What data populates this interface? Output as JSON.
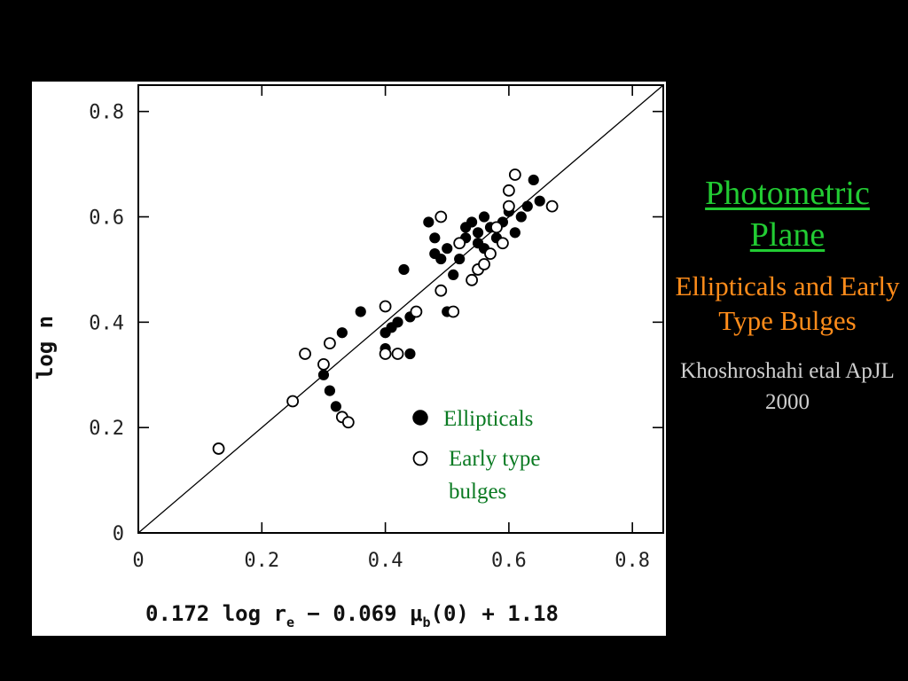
{
  "slide": {
    "title": "Photometric Plane",
    "subtitle": "Ellipticals and Early Type Bulges",
    "credit": "Khoshroshahi etal ApJL 2000",
    "colors": {
      "background": "#000000",
      "title": "#22cc33",
      "subtitle": "#ff8c1a",
      "credit": "#cfcfcf",
      "legend_text": "#0a7a22"
    }
  },
  "chart_data": {
    "type": "scatter",
    "title": "",
    "ylabel": "log n",
    "xlabel_parts": {
      "a": "0.172 log r",
      "a_sub": "e",
      "b": " − 0.069 ",
      "mu": "μ",
      "mu_sub": "b",
      "c": "(0) + 1.18"
    },
    "xlim": [
      0,
      0.85
    ],
    "ylim": [
      0,
      0.85
    ],
    "x_ticks": [
      {
        "value": 0,
        "label": "0"
      },
      {
        "value": 0.2,
        "label": "0.2"
      },
      {
        "value": 0.4,
        "label": "0.4"
      },
      {
        "value": 0.6,
        "label": "0.6"
      },
      {
        "value": 0.8,
        "label": "0.8"
      }
    ],
    "y_ticks": [
      {
        "value": 0,
        "label": "0"
      },
      {
        "value": 0.2,
        "label": "0.2"
      },
      {
        "value": 0.4,
        "label": "0.4"
      },
      {
        "value": 0.6,
        "label": "0.6"
      },
      {
        "value": 0.8,
        "label": "0.8"
      }
    ],
    "fit_line": {
      "from": [
        0,
        0
      ],
      "to": [
        0.85,
        0.85
      ]
    },
    "legend": {
      "placement": "center-right",
      "entries": [
        {
          "marker": "filled-circle",
          "label": "Ellipticals"
        },
        {
          "marker": "open-circle",
          "label": "Early type bulges"
        }
      ]
    },
    "series": [
      {
        "name": "Ellipticals",
        "marker": "filled-circle",
        "points": [
          [
            0.3,
            0.3
          ],
          [
            0.31,
            0.27
          ],
          [
            0.32,
            0.24
          ],
          [
            0.33,
            0.22
          ],
          [
            0.33,
            0.38
          ],
          [
            0.36,
            0.42
          ],
          [
            0.4,
            0.35
          ],
          [
            0.4,
            0.38
          ],
          [
            0.41,
            0.39
          ],
          [
            0.42,
            0.4
          ],
          [
            0.43,
            0.5
          ],
          [
            0.44,
            0.34
          ],
          [
            0.44,
            0.41
          ],
          [
            0.47,
            0.59
          ],
          [
            0.48,
            0.53
          ],
          [
            0.48,
            0.56
          ],
          [
            0.49,
            0.52
          ],
          [
            0.5,
            0.42
          ],
          [
            0.5,
            0.54
          ],
          [
            0.51,
            0.49
          ],
          [
            0.52,
            0.52
          ],
          [
            0.52,
            0.55
          ],
          [
            0.53,
            0.56
          ],
          [
            0.53,
            0.58
          ],
          [
            0.54,
            0.59
          ],
          [
            0.55,
            0.55
          ],
          [
            0.55,
            0.57
          ],
          [
            0.56,
            0.54
          ],
          [
            0.56,
            0.6
          ],
          [
            0.57,
            0.58
          ],
          [
            0.58,
            0.56
          ],
          [
            0.59,
            0.59
          ],
          [
            0.6,
            0.61
          ],
          [
            0.61,
            0.57
          ],
          [
            0.62,
            0.6
          ],
          [
            0.63,
            0.62
          ],
          [
            0.64,
            0.67
          ],
          [
            0.65,
            0.63
          ]
        ]
      },
      {
        "name": "Early type bulges",
        "marker": "open-circle",
        "points": [
          [
            0.13,
            0.16
          ],
          [
            0.25,
            0.25
          ],
          [
            0.27,
            0.34
          ],
          [
            0.3,
            0.32
          ],
          [
            0.31,
            0.36
          ],
          [
            0.33,
            0.22
          ],
          [
            0.34,
            0.21
          ],
          [
            0.4,
            0.34
          ],
          [
            0.4,
            0.43
          ],
          [
            0.42,
            0.34
          ],
          [
            0.45,
            0.42
          ],
          [
            0.49,
            0.46
          ],
          [
            0.49,
            0.6
          ],
          [
            0.51,
            0.42
          ],
          [
            0.52,
            0.55
          ],
          [
            0.54,
            0.48
          ],
          [
            0.55,
            0.5
          ],
          [
            0.56,
            0.51
          ],
          [
            0.57,
            0.53
          ],
          [
            0.58,
            0.58
          ],
          [
            0.59,
            0.55
          ],
          [
            0.6,
            0.62
          ],
          [
            0.6,
            0.65
          ],
          [
            0.61,
            0.68
          ],
          [
            0.67,
            0.62
          ]
        ]
      }
    ]
  }
}
